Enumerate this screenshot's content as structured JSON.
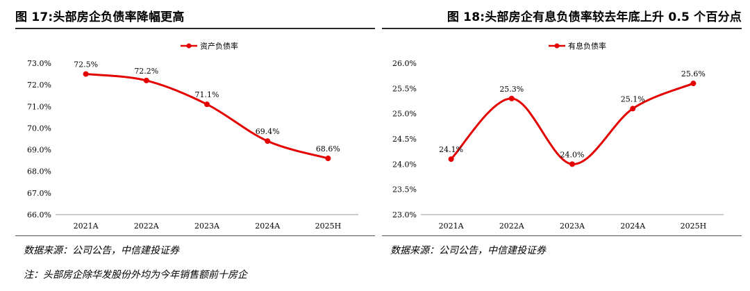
{
  "left": {
    "title": "图 17:头部房企负债率降幅更高",
    "source": "数据来源：公司公告，中信建投证券"
  },
  "right": {
    "title": "图 18:头部房企有息负债率较去年底上升 0.5 个百分点",
    "source": "数据来源：公司公告，中信建投证券"
  },
  "note": "注：头部房企除华发股份外均为今年销售额前十房企",
  "colors": {
    "series": "#e50000",
    "rule": "#2a2a2a"
  },
  "chart_data": [
    {
      "type": "line",
      "categories": [
        "2021A",
        "2022A",
        "2023A",
        "2024A",
        "2025H"
      ],
      "series": [
        {
          "name": "资产负债率",
          "values": [
            72.5,
            72.2,
            71.1,
            69.4,
            68.6
          ]
        }
      ],
      "data_labels": [
        "72.5%",
        "72.2%",
        "71.1%",
        "69.4%",
        "68.6%"
      ],
      "ylim": [
        66.0,
        73.0
      ],
      "yticks": [
        "73.0%",
        "72.0%",
        "71.0%",
        "70.0%",
        "69.0%",
        "68.0%",
        "67.0%",
        "66.0%"
      ],
      "ytick_values": [
        73,
        72,
        71,
        70,
        69,
        68,
        67,
        66
      ],
      "legend_position": "top-center",
      "grid": false,
      "smooth": true
    },
    {
      "type": "line",
      "categories": [
        "2021A",
        "2022A",
        "2023A",
        "2024A",
        "2025H"
      ],
      "series": [
        {
          "name": "有息负债率",
          "values": [
            24.1,
            25.3,
            24.0,
            25.1,
            25.6
          ]
        }
      ],
      "data_labels": [
        "24.1%",
        "25.3%",
        "24.0%",
        "25.1%",
        "25.6%"
      ],
      "ylim": [
        23.0,
        26.0
      ],
      "yticks": [
        "26.0%",
        "25.5%",
        "25.0%",
        "24.5%",
        "24.0%",
        "23.5%",
        "23.0%"
      ],
      "ytick_values": [
        26.0,
        25.5,
        25.0,
        24.5,
        24.0,
        23.5,
        23.0
      ],
      "legend_position": "top-center",
      "grid": false,
      "smooth": true
    }
  ]
}
